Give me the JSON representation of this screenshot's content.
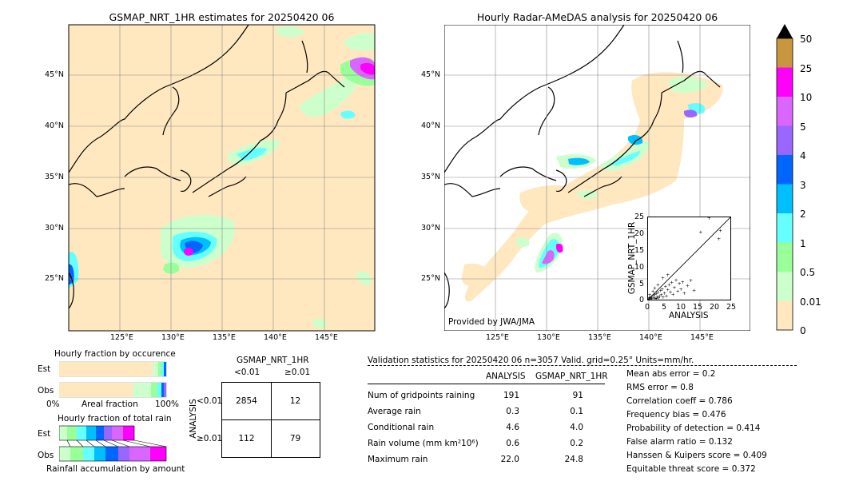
{
  "left_map": {
    "title": "GSMAP_NRT_1HR estimates for 20250420 06",
    "lon_ticks": [
      "125°E",
      "130°E",
      "135°E",
      "140°E",
      "145°E"
    ],
    "lat_ticks": [
      "45°N",
      "40°N",
      "35°N",
      "30°N",
      "25°N"
    ]
  },
  "right_map": {
    "title": "Hourly Radar-AMeDAS analysis for 20250420 06",
    "lon_ticks": [
      "125°E",
      "130°E",
      "135°E",
      "140°E",
      "145°E"
    ],
    "lat_ticks": [
      "45°N",
      "40°N",
      "35°N",
      "30°N",
      "25°N"
    ],
    "credit": "Provided by JWA/JMA"
  },
  "colorbar": {
    "labels": [
      "50",
      "25",
      "10",
      "5",
      "4",
      "3",
      "2",
      "1",
      "0.5",
      "0.01",
      "0"
    ],
    "colors": [
      "#c8963c",
      "#ff00ff",
      "#d966ff",
      "#9966ff",
      "#0066ff",
      "#00bfff",
      "#66ffff",
      "#99ff99",
      "#ccffcc",
      "#ffe8c0"
    ]
  },
  "scatter": {
    "xlabel": "ANALYSIS",
    "ylabel": "GSMAP_NRT_1HR",
    "ticks": [
      "0",
      "5",
      "10",
      "15",
      "20",
      "25"
    ]
  },
  "chart_data": [
    {
      "type": "scatter",
      "xlabel": "ANALYSIS",
      "ylabel": "GSMAP_NRT_1HR",
      "xlim": [
        0,
        25
      ],
      "ylim": [
        0,
        25
      ],
      "points": [
        [
          0.2,
          0.1
        ],
        [
          0.4,
          0.3
        ],
        [
          0.6,
          0.2
        ],
        [
          0.8,
          0.5
        ],
        [
          1.0,
          0.8
        ],
        [
          1.2,
          0.3
        ],
        [
          1.5,
          1.2
        ],
        [
          1.8,
          0.6
        ],
        [
          2.0,
          1.5
        ],
        [
          2.2,
          0.4
        ],
        [
          2.5,
          1.8
        ],
        [
          2.8,
          0.9
        ],
        [
          3.0,
          2.2
        ],
        [
          3.2,
          0.5
        ],
        [
          3.5,
          1.0
        ],
        [
          3.8,
          2.8
        ],
        [
          4.0,
          1.4
        ],
        [
          4.3,
          3.2
        ],
        [
          4.6,
          0.7
        ],
        [
          5.0,
          2.0
        ],
        [
          5.3,
          4.0
        ],
        [
          5.6,
          1.1
        ],
        [
          6.0,
          3.0
        ],
        [
          6.4,
          4.5
        ],
        [
          6.8,
          2.3
        ],
        [
          7.2,
          5.2
        ],
        [
          7.6,
          1.6
        ],
        [
          8.0,
          3.6
        ],
        [
          8.5,
          6.0
        ],
        [
          9.0,
          2.6
        ],
        [
          9.5,
          4.8
        ],
        [
          10.0,
          3.1
        ],
        [
          10.5,
          5.4
        ],
        [
          11.0,
          1.9
        ],
        [
          12.0,
          4.2
        ],
        [
          13.0,
          5.8
        ],
        [
          14.0,
          2.8
        ],
        [
          16.0,
          20.5
        ],
        [
          18.5,
          24.8
        ],
        [
          21.5,
          18.5
        ],
        [
          22.0,
          21.0
        ],
        [
          0.5,
          1.5
        ],
        [
          1.5,
          2.5
        ],
        [
          3.0,
          4.5
        ],
        [
          2.0,
          3.5
        ],
        [
          6.0,
          7.5
        ],
        [
          4.5,
          6.5
        ],
        [
          1.0,
          0.2
        ],
        [
          0.3,
          0.6
        ],
        [
          2.6,
          0.2
        ]
      ]
    },
    {
      "type": "bar",
      "title": "Hourly fraction by occurence",
      "categories": [
        "Est",
        "Obs"
      ],
      "xlabel": "Areal fraction",
      "x_ticks": [
        "0%",
        "100%"
      ]
    },
    {
      "type": "bar",
      "title": "Hourly fraction of total rain",
      "categories": [
        "Est",
        "Obs"
      ],
      "xlabel": "Rainfall accumulation by amount"
    },
    {
      "type": "table",
      "title": "GSMAP_NRT_1HR",
      "col_headers": [
        "<0.01",
        "≥0.01"
      ],
      "row_axis_label": "ANALYSIS",
      "row_headers": [
        "<0.01",
        "≥0.01"
      ],
      "cells": [
        [
          2854,
          12
        ],
        [
          112,
          79
        ]
      ]
    }
  ],
  "contingency": {
    "title": "GSMAP_NRT_1HR",
    "col_headers": [
      "<0.01",
      "≥0.01"
    ],
    "row_axis_label": "ANALYSIS",
    "row_headers": [
      "<0.01",
      "≥0.01"
    ],
    "cells": [
      "2854",
      "12",
      "112",
      "79"
    ]
  },
  "occurrence": {
    "title": "Hourly fraction by occurence",
    "est": "Est",
    "obs": "Obs",
    "tick0": "0%",
    "xlabel": "Areal fraction",
    "tick100": "100%"
  },
  "totalrain": {
    "title": "Hourly fraction of total rain",
    "est": "Est",
    "obs": "Obs",
    "xlabel": "Rainfall accumulation by amount"
  },
  "validation": {
    "header": "Validation statistics for 20250420 06  n=3057 Valid. grid=0.25° Units=mm/hr.",
    "col1": "ANALYSIS",
    "col2": "GSMAP_NRT_1HR",
    "rows": [
      {
        "label": "Num of gridpoints raining",
        "a": "191",
        "g": "91"
      },
      {
        "label": "Average rain",
        "a": "0.3",
        "g": "0.1"
      },
      {
        "label": "Conditional rain",
        "a": "4.6",
        "g": "4.0"
      },
      {
        "label": "Rain volume (mm km²10⁶)",
        "a": "0.6",
        "g": "0.2"
      },
      {
        "label": "Maximum rain",
        "a": "22.0",
        "g": "24.8"
      }
    ],
    "scores": [
      "Mean abs error =    0.2",
      "RMS error =    0.8",
      "Correlation coeff =  0.786",
      "Frequency bias =  0.476",
      "Probability of detection =  0.414",
      "False alarm ratio =  0.132",
      "Hanssen & Kuipers score =  0.409",
      "Equitable threat score =  0.372"
    ]
  }
}
